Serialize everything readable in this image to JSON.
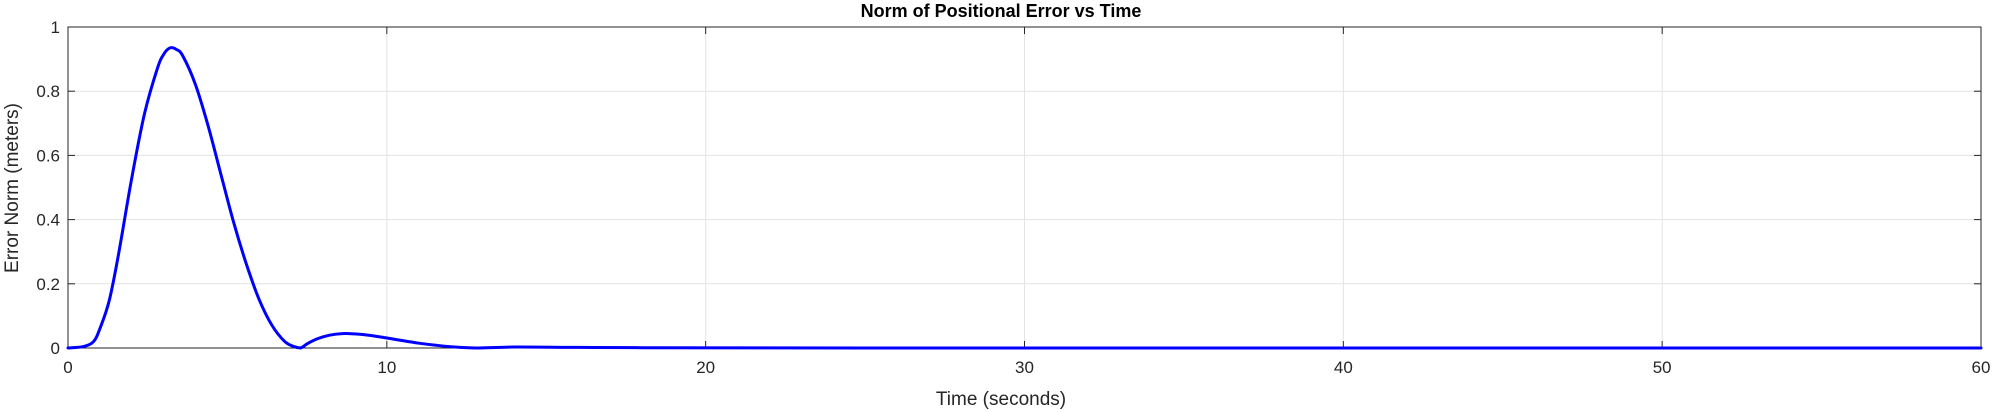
{
  "chart_data": {
    "type": "line",
    "title": "Norm of Positional Error vs Time",
    "xlabel": "Time (seconds)",
    "ylabel": "Error Norm (meters)",
    "xlim": [
      0,
      60
    ],
    "ylim": [
      0,
      1
    ],
    "xticks": [
      0,
      10,
      20,
      30,
      40,
      50,
      60
    ],
    "yticks": [
      0,
      0.2,
      0.4,
      0.6,
      0.8,
      1
    ],
    "xtick_labels": [
      "0",
      "10",
      "20",
      "30",
      "40",
      "50",
      "60"
    ],
    "ytick_labels": [
      "0",
      "0.2",
      "0.4",
      "0.6",
      "0.8",
      "1"
    ],
    "grid": true,
    "line_color": "#0000ff",
    "series": [
      {
        "x": [
          0,
          0.5,
          0.8,
          1.0,
          1.3,
          1.6,
          2.0,
          2.4,
          2.8,
          3.0,
          3.2,
          3.4,
          3.6,
          4.0,
          4.4,
          4.8,
          5.2,
          5.6,
          6.0,
          6.4,
          6.8,
          7.1,
          7.3,
          7.5,
          7.8,
          8.2,
          8.6,
          9.0,
          9.5,
          10.0,
          10.5,
          11.0,
          11.5,
          12.0,
          12.8,
          14.0,
          16.0,
          18.0,
          25.0,
          35.0,
          45.0,
          60.0
        ],
        "y": [
          0,
          0.005,
          0.02,
          0.06,
          0.15,
          0.3,
          0.53,
          0.73,
          0.87,
          0.915,
          0.935,
          0.93,
          0.91,
          0.82,
          0.69,
          0.54,
          0.39,
          0.26,
          0.15,
          0.07,
          0.02,
          0.004,
          0.0,
          0.013,
          0.028,
          0.04,
          0.045,
          0.044,
          0.039,
          0.031,
          0.023,
          0.015,
          0.009,
          0.004,
          0.0,
          0.003,
          0.002,
          0.001,
          0.0,
          0.0,
          0.0,
          0.0
        ]
      }
    ]
  }
}
